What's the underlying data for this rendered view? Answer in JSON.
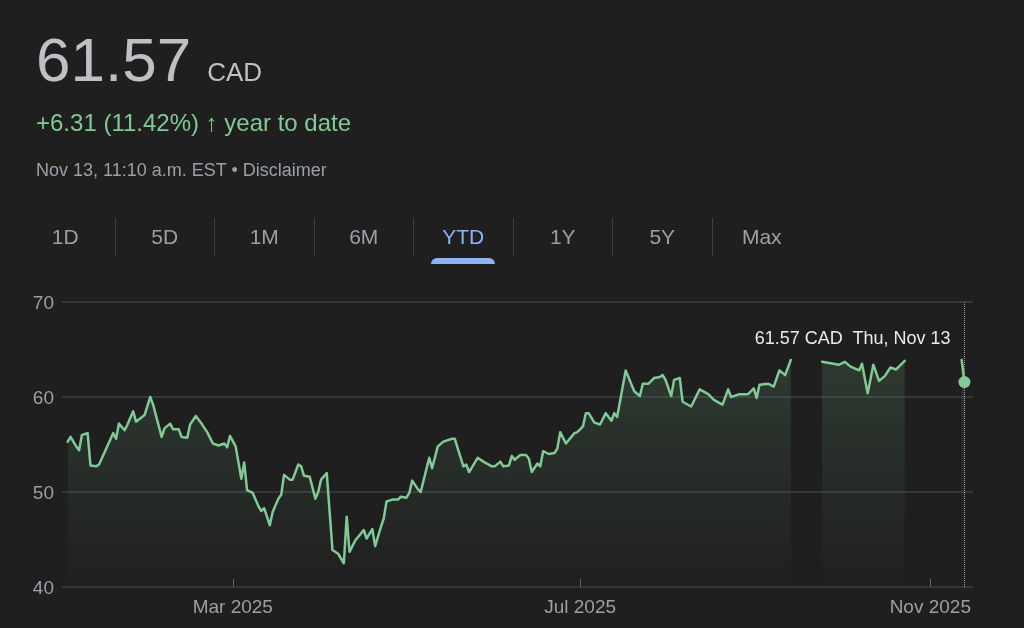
{
  "chart_data": {
    "type": "area",
    "title": "61.57 CAD",
    "subtitle": "+6.31 (11.42%) ↑ year to date",
    "annotations": [
      "Nov 13, 11:10 a.m. EST • Disclaimer",
      "1D",
      "5D",
      "1M",
      "6M",
      "YTD",
      "1Y",
      "5Y",
      "Max",
      {
        "text": "61.57 CAD  Thu, Nov 13",
        "x": "2025-11-13",
        "y": 61.57
      }
    ],
    "x": [
      "2025-01-02",
      "2025-01-03",
      "2025-01-05",
      "2025-01-06",
      "2025-01-07",
      "2025-01-09",
      "2025-01-10",
      "2025-01-12",
      "2025-01-13",
      "2025-01-15",
      "2025-01-18",
      "2025-01-19",
      "2025-01-20",
      "2025-01-22",
      "2025-01-23",
      "2025-01-25",
      "2025-01-26",
      "2025-01-29",
      "2025-01-31",
      "2025-02-01",
      "2025-02-04",
      "2025-02-05",
      "2025-02-07",
      "2025-02-08",
      "2025-02-10",
      "2025-02-11",
      "2025-02-13",
      "2025-02-14",
      "2025-02-16",
      "2025-02-18",
      "2025-02-20",
      "2025-02-22",
      "2025-02-24",
      "2025-02-26",
      "2025-02-27",
      "2025-02-28",
      "2025-03-02",
      "2025-03-04",
      "2025-03-05",
      "2025-03-06",
      "2025-03-08",
      "2025-03-10",
      "2025-03-11",
      "2025-03-12",
      "2025-03-14",
      "2025-03-15",
      "2025-03-17",
      "2025-03-18",
      "2025-03-19",
      "2025-03-21",
      "2025-03-22",
      "2025-03-24",
      "2025-03-25",
      "2025-03-26",
      "2025-03-28",
      "2025-03-30",
      "2025-03-31",
      "2025-04-01",
      "2025-04-03",
      "2025-04-05",
      "2025-04-07",
      "2025-04-09",
      "2025-04-10",
      "2025-04-11",
      "2025-04-13",
      "2025-04-16",
      "2025-04-17",
      "2025-04-19",
      "2025-04-20",
      "2025-04-22",
      "2025-04-23",
      "2025-04-24",
      "2025-04-26",
      "2025-04-28",
      "2025-04-29",
      "2025-05-01",
      "2025-05-02",
      "2025-05-03",
      "2025-05-05",
      "2025-05-06",
      "2025-05-09",
      "2025-05-10",
      "2025-05-12",
      "2025-05-14",
      "2025-05-17",
      "2025-05-18",
      "2025-05-19",
      "2025-05-21",
      "2025-05-22",
      "2025-05-23",
      "2025-05-26",
      "2025-05-28",
      "2025-05-31",
      "2025-06-01",
      "2025-06-03",
      "2025-06-04",
      "2025-06-06",
      "2025-06-07",
      "2025-06-08",
      "2025-06-10",
      "2025-06-12",
      "2025-06-13",
      "2025-06-14",
      "2025-06-16",
      "2025-06-17",
      "2025-06-18",
      "2025-06-20",
      "2025-06-22",
      "2025-06-23",
      "2025-06-24",
      "2025-06-26",
      "2025-06-29",
      "2025-06-30",
      "2025-07-02",
      "2025-07-03",
      "2025-07-04",
      "2025-07-06",
      "2025-07-08",
      "2025-07-10",
      "2025-07-12",
      "2025-07-13",
      "2025-07-14",
      "2025-07-17",
      "2025-07-20",
      "2025-07-22",
      "2025-07-23",
      "2025-07-25",
      "2025-07-26",
      "2025-07-27",
      "2025-07-29",
      "2025-07-30",
      "2025-07-31",
      "2025-08-02",
      "2025-08-03",
      "2025-08-05",
      "2025-08-06",
      "2025-08-09",
      "2025-08-12",
      "2025-08-15",
      "2025-08-17",
      "2025-08-20",
      "2025-08-22",
      "2025-08-23",
      "2025-08-26",
      "2025-08-29",
      "2025-08-31",
      "2025-09-01",
      "2025-09-02",
      "2025-09-05",
      "2025-09-07",
      "2025-09-09",
      "2025-09-11",
      "2025-09-13",
      "2025-09-20",
      "2025-09-24",
      "2025-09-30",
      "2025-10-02",
      "2025-10-04",
      "2025-10-07",
      "2025-10-08",
      "2025-10-10",
      "2025-10-12",
      "2025-10-14",
      "2025-10-16",
      "2025-10-18",
      "2025-10-20",
      "2025-10-23",
      "2025-11-03",
      "2025-11-12",
      "2025-11-13"
    ],
    "series": [
      {
        "color": "#81c995",
        "values": [
          55.3,
          55.8,
          54.8,
          54.4,
          56.0,
          56.2,
          52.8,
          52.7,
          52.9,
          54.2,
          56.2,
          55.6,
          57.2,
          56.5,
          57.1,
          58.5,
          57.4,
          58.1,
          60.0,
          59.2,
          55.8,
          56.7,
          57.2,
          56.6,
          56.6,
          55.8,
          55.7,
          57.1,
          58.0,
          57.2,
          56.3,
          55.1,
          54.9,
          55.1,
          54.7,
          55.9,
          54.8,
          51.4,
          53.1,
          50.2,
          49.9,
          48.5,
          48.0,
          48.3,
          46.5,
          47.9,
          49.3,
          49.7,
          51.8,
          51.3,
          51.3,
          52.9,
          52.7,
          51.7,
          51.6,
          49.3,
          50.0,
          51.3,
          52.0,
          43.9,
          43.5,
          42.5,
          47.4,
          43.7,
          44.9,
          46.0,
          45.1,
          46.1,
          44.3,
          46.3,
          47.2,
          49.0,
          49.2,
          49.2,
          49.5,
          49.4,
          49.9,
          51.2,
          50.3,
          50.0,
          53.6,
          52.5,
          54.8,
          55.3,
          55.6,
          55.6,
          54.6,
          52.7,
          52.9,
          52.1,
          53.6,
          53.2,
          52.7,
          52.7,
          53.2,
          52.7,
          52.8,
          53.8,
          53.4,
          53.9,
          53.9,
          53.5,
          52.1,
          53.0,
          52.7,
          54.3,
          54.0,
          54.1,
          54.6,
          56.3,
          55.1,
          56.2,
          56.3,
          56.9,
          58.3,
          58.3,
          57.3,
          57.1,
          58.3,
          57.5,
          58.3,
          57.9,
          62.8,
          60.6,
          60.1,
          61.4,
          61.4,
          61.7,
          62.0,
          62.1,
          62.3,
          61.8,
          60.1,
          61.8,
          62.0,
          59.5,
          59.0,
          60.8,
          60.3,
          59.7,
          59.2,
          60.8,
          60.0,
          60.3,
          60.3,
          60.9,
          59.9,
          61.3,
          61.4,
          61.1,
          62.8,
          62.3,
          63.9,
          null,
          63.7,
          63.4,
          63.7,
          63.2,
          62.8,
          63.5,
          60.4,
          63.4,
          61.7,
          62.2,
          63.1,
          62.9,
          63.8,
          null,
          63.9,
          61.57
        ]
      }
    ],
    "xlim": [
      "2024-12-31",
      "2025-11-16"
    ],
    "xticks": [
      {
        "value": "2025-03-01",
        "label": "Mar 2025"
      },
      {
        "value": "2025-07-01",
        "label": "Jul 2025"
      },
      {
        "value": "2025-11-01",
        "label": "Nov 2025"
      }
    ],
    "ylim": [
      40,
      70
    ],
    "yticks": [
      40,
      50,
      60,
      70
    ],
    "grid": "y",
    "marker": "none",
    "line_style": "solid",
    "ref_lines": [
      {
        "axis": "x",
        "value": "2025-11-13",
        "color": "#9aa0a6",
        "line_style": "dotted"
      }
    ]
  }
}
